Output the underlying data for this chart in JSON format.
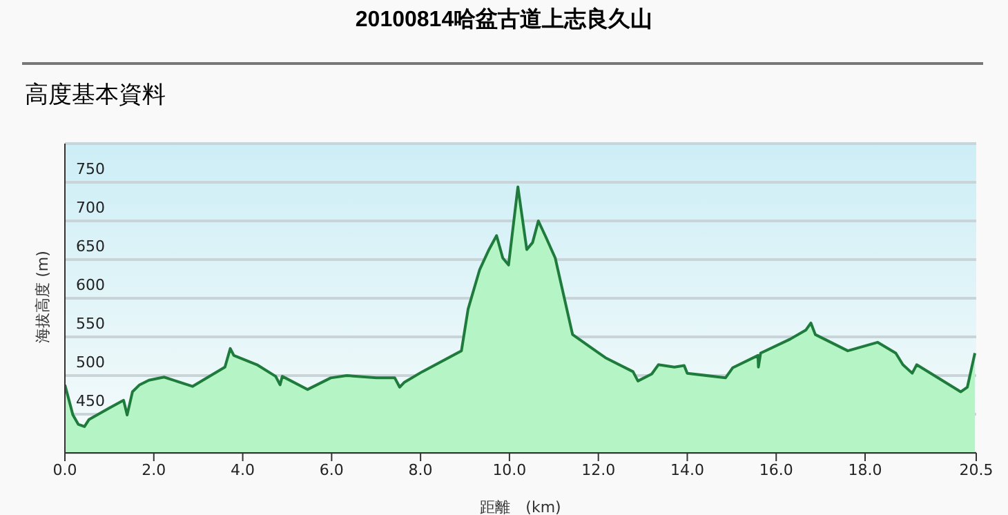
{
  "chart_data": {
    "type": "area",
    "title": "20100814哈盆古道上志良久山",
    "subtitle": "高度基本資料",
    "xlabel": "距離　(km)",
    "ylabel": "海拔高度 (m)",
    "x": [
      0,
      0.07,
      0.18,
      0.3,
      0.44,
      0.54,
      1.0,
      1.32,
      1.4,
      1.52,
      1.68,
      1.89,
      2.23,
      2.87,
      3.6,
      3.72,
      3.8,
      4.32,
      4.74,
      4.84,
      4.89,
      5.46,
      5.98,
      6.34,
      7.01,
      7.42,
      7.53,
      7.63,
      8.04,
      8.92,
      9.07,
      9.33,
      9.54,
      9.71,
      9.85,
      9.98,
      10.19,
      10.39,
      10.52,
      10.65,
      10.82,
      11.03,
      11.42,
      12.16,
      12.78,
      12.89,
      13.2,
      13.35,
      13.71,
      13.93,
      14.0,
      14.86,
      15.02,
      15.59,
      15.6,
      15.65,
      16.31,
      16.67,
      16.78,
      16.88,
      17.61,
      18.28,
      18.69,
      18.85,
      19.06,
      19.16,
      20.15,
      20.3,
      20.47
    ],
    "series": [
      {
        "color": "#1e7b3c",
        "values": [
          488,
          473,
          449,
          437,
          434,
          443,
          458,
          468,
          449,
          479,
          488,
          494,
          498,
          486,
          511,
          535,
          526,
          514,
          499,
          488,
          499,
          482,
          497,
          500,
          497,
          497,
          485,
          491,
          505,
          532,
          586,
          637,
          663,
          681,
          652,
          643,
          744,
          663,
          672,
          700,
          679,
          652,
          553,
          523,
          505,
          493,
          502,
          514,
          511,
          513,
          503,
          497,
          510,
          526,
          511,
          529,
          547,
          559,
          568,
          553,
          532,
          543,
          529,
          514,
          503,
          514,
          479,
          485,
          529
        ]
      }
    ],
    "xlim": [
      0,
      20.5
    ],
    "xticks": [
      {
        "value": 0,
        "label": "0.0"
      },
      {
        "value": 2,
        "label": "2.0"
      },
      {
        "value": 4,
        "label": "4.0"
      },
      {
        "value": 6,
        "label": "6.0"
      },
      {
        "value": 8,
        "label": "8.0"
      },
      {
        "value": 10,
        "label": "10.0"
      },
      {
        "value": 12,
        "label": "12.0"
      },
      {
        "value": 14,
        "label": "14.0"
      },
      {
        "value": 16,
        "label": "16.0"
      },
      {
        "value": 18,
        "label": "18.0"
      },
      {
        "value": 20.5,
        "label": "20.5"
      }
    ],
    "ylim": [
      400,
      800
    ],
    "yticks": [
      450,
      500,
      550,
      600,
      650,
      700,
      750
    ],
    "grid": "y",
    "marker": "none",
    "line_style": "solid"
  }
}
